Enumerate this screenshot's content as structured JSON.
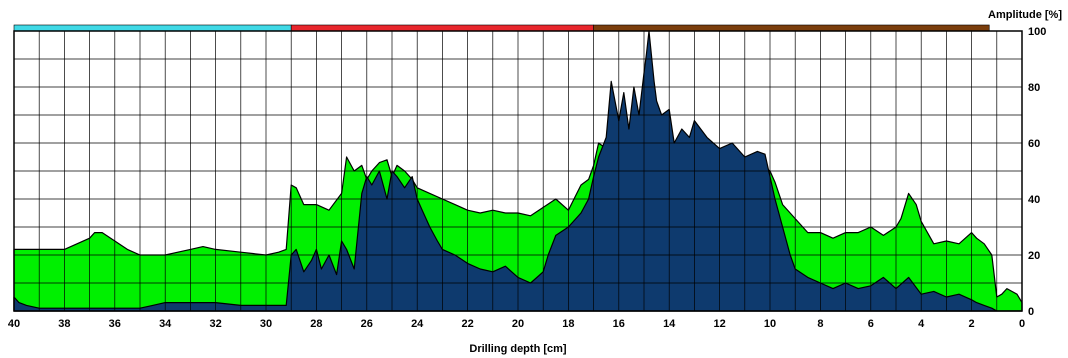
{
  "chart_data": {
    "type": "area",
    "title": "",
    "xlabel": "Drilling depth [cm]",
    "ylabel": "Amplitude [%]",
    "xlim": [
      40,
      0
    ],
    "ylim": [
      0,
      100
    ],
    "x_ticks": [
      40,
      38,
      36,
      34,
      32,
      30,
      28,
      26,
      24,
      22,
      20,
      18,
      16,
      14,
      12,
      10,
      8,
      6,
      4,
      2,
      0
    ],
    "y_ticks": [
      0,
      20,
      40,
      60,
      80,
      100
    ],
    "grid": true,
    "zones": [
      {
        "from": 40,
        "to": 29,
        "color": "#3fd9e6"
      },
      {
        "from": 29,
        "to": 17,
        "color": "#e8262c"
      },
      {
        "from": 17,
        "to": 1.3,
        "color": "#7a3d0c"
      }
    ],
    "series": [
      {
        "color": "#00f000",
        "x": [
          40,
          39,
          38,
          37.5,
          37,
          36.8,
          36.5,
          36,
          35.5,
          35,
          34,
          33.5,
          33,
          32.5,
          32,
          31,
          30,
          29.5,
          29.2,
          29,
          28.8,
          28.5,
          28,
          27.5,
          27,
          26.8,
          26.5,
          26.2,
          26,
          25.8,
          25.5,
          25.2,
          25,
          24.8,
          24.5,
          24.2,
          24,
          23.5,
          23,
          22.5,
          22,
          21.5,
          21,
          20.5,
          20,
          19.5,
          19,
          18.5,
          18,
          17.5,
          17.2,
          17,
          16.8,
          16.5,
          16.2,
          16,
          15.8,
          15.5,
          15.2,
          15,
          14.8,
          14.5,
          14.2,
          14,
          13.5,
          13,
          12.5,
          12,
          11.5,
          11,
          10.5,
          10,
          9.8,
          9.5,
          9,
          8.5,
          8,
          7.5,
          7,
          6.5,
          6,
          5.5,
          5,
          4.8,
          4.5,
          4.2,
          4,
          3.5,
          3,
          2.5,
          2,
          1.8,
          1.5,
          1.2,
          1,
          0.8,
          0.6,
          0.4,
          0.2,
          0
        ],
        "values": [
          22,
          22,
          22,
          24,
          26,
          28,
          28,
          25,
          22,
          20,
          20,
          21,
          22,
          23,
          22,
          21,
          20,
          21,
          22,
          45,
          44,
          38,
          38,
          36,
          42,
          55,
          50,
          52,
          47,
          50,
          53,
          54,
          48,
          52,
          50,
          47,
          44,
          42,
          40,
          38,
          36,
          35,
          36,
          35,
          35,
          34,
          37,
          40,
          36,
          45,
          47,
          52,
          60,
          58,
          59,
          62,
          58,
          60,
          56,
          62,
          56,
          58,
          54,
          53,
          55,
          52,
          53,
          50,
          52,
          51,
          53,
          50,
          46,
          38,
          33,
          28,
          28,
          26,
          28,
          28,
          30,
          27,
          30,
          33,
          42,
          38,
          32,
          24,
          25,
          24,
          28,
          26,
          24,
          20,
          5,
          6,
          8,
          7,
          6,
          3
        ]
      },
      {
        "color": "#0e3a6e",
        "x": [
          40,
          39.8,
          39.5,
          39,
          38,
          37,
          36,
          35,
          34.5,
          34,
          33.5,
          33,
          32,
          31,
          30,
          29.5,
          29.2,
          29,
          28.8,
          28.5,
          28.2,
          28,
          27.8,
          27.5,
          27.2,
          27,
          26.8,
          26.5,
          26.2,
          26,
          25.8,
          25.5,
          25.2,
          25,
          24.8,
          24.5,
          24.2,
          24,
          23.8,
          23.5,
          23.2,
          23,
          22.5,
          22,
          21.5,
          21,
          20.5,
          20,
          19.5,
          19,
          18.8,
          18.5,
          18,
          17.5,
          17.2,
          17,
          16.8,
          16.5,
          16.3,
          16,
          15.8,
          15.6,
          15.4,
          15.2,
          15,
          14.9,
          14.8,
          14.6,
          14.5,
          14.3,
          14,
          13.8,
          13.5,
          13.2,
          13,
          12.5,
          12,
          11.5,
          11,
          10.5,
          10.2,
          10,
          9.8,
          9.5,
          9.2,
          9,
          8.5,
          8,
          7.5,
          7,
          6.5,
          6,
          5.5,
          5,
          4.5,
          4,
          3.5,
          3,
          2.5,
          2,
          1.8,
          1.5,
          1.2,
          1,
          0.5,
          0
        ],
        "values": [
          5,
          3,
          2,
          1,
          1,
          1,
          1,
          1,
          2,
          3,
          3,
          3,
          3,
          2,
          2,
          2,
          2,
          20,
          22,
          14,
          18,
          22,
          15,
          20,
          13,
          25,
          22,
          15,
          42,
          48,
          45,
          50,
          40,
          50,
          48,
          44,
          48,
          40,
          36,
          30,
          25,
          22,
          20,
          17,
          15,
          14,
          16,
          12,
          10,
          14,
          20,
          27,
          30,
          35,
          40,
          48,
          55,
          62,
          82,
          68,
          78,
          65,
          80,
          70,
          85,
          92,
          100,
          82,
          75,
          70,
          72,
          60,
          65,
          62,
          68,
          62,
          58,
          60,
          55,
          57,
          56,
          48,
          40,
          30,
          20,
          15,
          12,
          10,
          8,
          10,
          8,
          9,
          12,
          8,
          12,
          6,
          7,
          5,
          6,
          4,
          3,
          2,
          1,
          0,
          0,
          0
        ]
      }
    ]
  }
}
